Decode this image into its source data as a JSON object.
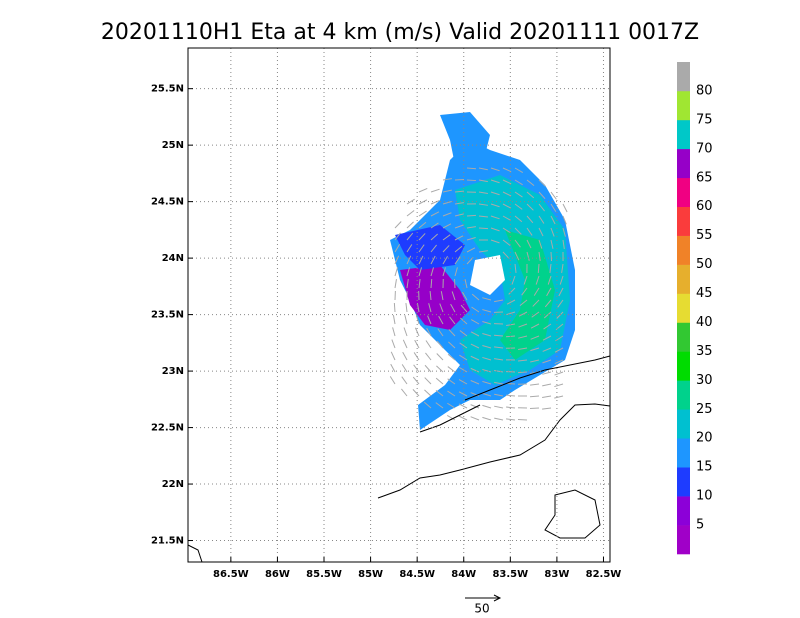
{
  "chart_data": {
    "type": "wind-map",
    "title": "20201110H1 Eta at 4 km (m/s) Valid 20201111 0017Z",
    "xlim": [
      -86.96,
      -82.43
    ],
    "ylim": [
      21.31,
      25.86
    ],
    "xticks": [
      {
        "value": -86.5,
        "label": "86.5W"
      },
      {
        "value": -86,
        "label": "86W"
      },
      {
        "value": -85.5,
        "label": "85.5W"
      },
      {
        "value": -85,
        "label": "85W"
      },
      {
        "value": -84.5,
        "label": "84.5W"
      },
      {
        "value": -84,
        "label": "84W"
      },
      {
        "value": -83.5,
        "label": "83.5W"
      },
      {
        "value": -83,
        "label": "83W"
      },
      {
        "value": -82.5,
        "label": "82.5W"
      }
    ],
    "yticks": [
      {
        "value": 21.5,
        "label": "21.5N"
      },
      {
        "value": 22,
        "label": "22N"
      },
      {
        "value": 22.5,
        "label": "22.5N"
      },
      {
        "value": 23,
        "label": "23N"
      },
      {
        "value": 23.5,
        "label": "23.5N"
      },
      {
        "value": 24,
        "label": "24N"
      },
      {
        "value": 24.5,
        "label": "24.5N"
      },
      {
        "value": 25,
        "label": "25N"
      },
      {
        "value": 25.5,
        "label": "25.5N"
      }
    ],
    "grid": true,
    "colorbar": {
      "levels": [
        5,
        10,
        15,
        20,
        25,
        30,
        35,
        40,
        45,
        50,
        55,
        60,
        65,
        70,
        75,
        80
      ],
      "colors": [
        "#a000c8",
        "#8c00d8",
        "#1e3cff",
        "#1e96ff",
        "#00c0d0",
        "#00d28c",
        "#00dc00",
        "#32c832",
        "#e6dc32",
        "#e6af2d",
        "#f08228",
        "#fa3c3c",
        "#f00082",
        "#9600c8",
        "#00c8c8",
        "#a0e632",
        "#aaaaaa"
      ]
    },
    "reference_vector": 50
  }
}
